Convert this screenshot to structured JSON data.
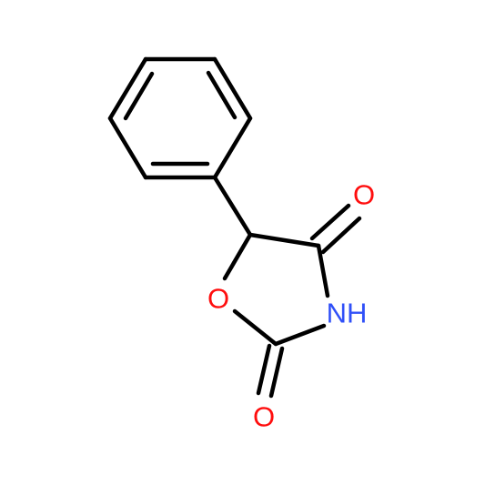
{
  "atoms": [
    {
      "label": "O"
    },
    {
      "label": "NH"
    },
    {
      "label": "O"
    },
    {
      "label": "O"
    }
  ]
}
